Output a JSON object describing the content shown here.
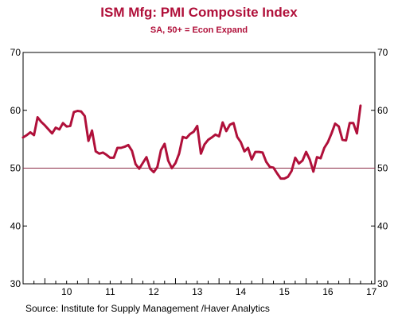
{
  "colors": {
    "series": "#b0103a",
    "reference": "#8b2b45",
    "title": "#b0103a",
    "axis": "#000000"
  },
  "chart_data": {
    "type": "line",
    "title": "ISM Mfg: PMI Composite Index",
    "subtitle": "SA, 50+ = Econ Expand",
    "source": "Source:  Institute for Supply Management /Haver Analytics",
    "xlabel": "",
    "ylabel": "",
    "xlim": [
      2009.5,
      2017.58
    ],
    "ylim": [
      30,
      70
    ],
    "y_ticks": [
      30,
      40,
      50,
      60,
      70
    ],
    "x_tick_labels": [
      "10",
      "11",
      "12",
      "13",
      "14",
      "15",
      "16",
      "17"
    ],
    "x_tick_positions": [
      2010.5,
      2011.5,
      2012.5,
      2013.5,
      2014.5,
      2015.5,
      2016.5,
      2017.5
    ],
    "reference_line": 50,
    "grid": false,
    "series": [
      {
        "start_year": 2009.5,
        "step": 0.0833333,
        "values": [
          55.3,
          55.7,
          56.2,
          55.7,
          58.8,
          58.0,
          57.4,
          56.7,
          56.0,
          57.0,
          56.7,
          57.8,
          57.2,
          57.3,
          59.7,
          59.9,
          59.8,
          59.0,
          54.7,
          56.5,
          52.9,
          52.5,
          52.7,
          52.3,
          51.8,
          51.8,
          53.5,
          53.5,
          53.7,
          54.0,
          53.0,
          50.7,
          49.9,
          50.9,
          51.9,
          49.9,
          49.3,
          50.2,
          53.1,
          54.2,
          51.3,
          50.0,
          50.9,
          52.5,
          55.4,
          55.2,
          55.9,
          56.3,
          57.3,
          52.5,
          54.1,
          54.9,
          55.3,
          55.8,
          55.5,
          57.9,
          56.4,
          57.5,
          57.8,
          55.4,
          54.5,
          52.9,
          53.5,
          51.5,
          52.8,
          52.8,
          52.7,
          51.1,
          50.2,
          50.1,
          49.1,
          48.2,
          48.2,
          48.5,
          49.5,
          51.8,
          50.8,
          51.3,
          52.8,
          51.5,
          49.4,
          51.9,
          51.7,
          53.5,
          54.5,
          56.0,
          57.7,
          57.2,
          54.9,
          54.8,
          57.8,
          57.8,
          56.0,
          60.8
        ]
      }
    ]
  }
}
